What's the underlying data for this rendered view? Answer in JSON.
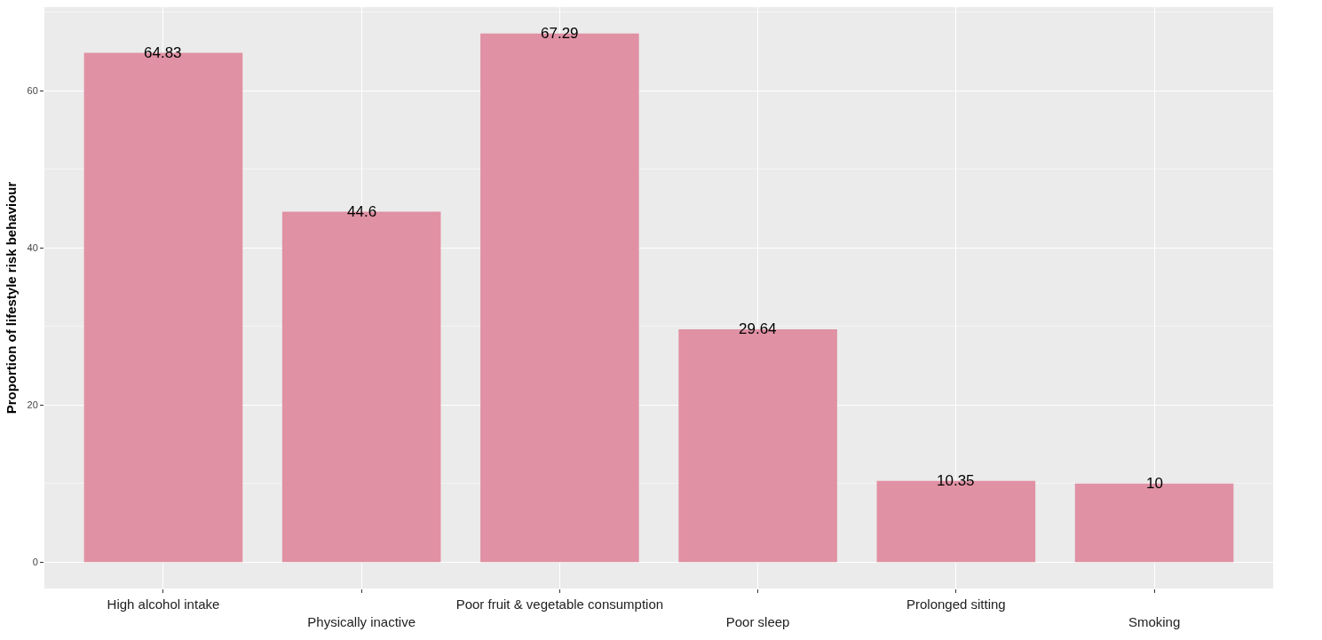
{
  "chart_data": {
    "type": "bar",
    "ylabel": "Proportion of lifestyle risk behaviour",
    "categories": [
      "High alcohol intake",
      "Physically inactive",
      "Poor fruit & vegetable consumption",
      "Poor sleep",
      "Prolonged sitting",
      "Smoking"
    ],
    "values": [
      64.83,
      44.6,
      67.29,
      29.64,
      10.35,
      10
    ],
    "color": "#e091a3",
    "ylim": [
      -3.36,
      70.65
    ],
    "yticks": [
      0,
      20,
      40,
      60
    ],
    "grid": true,
    "data_labels": true
  }
}
